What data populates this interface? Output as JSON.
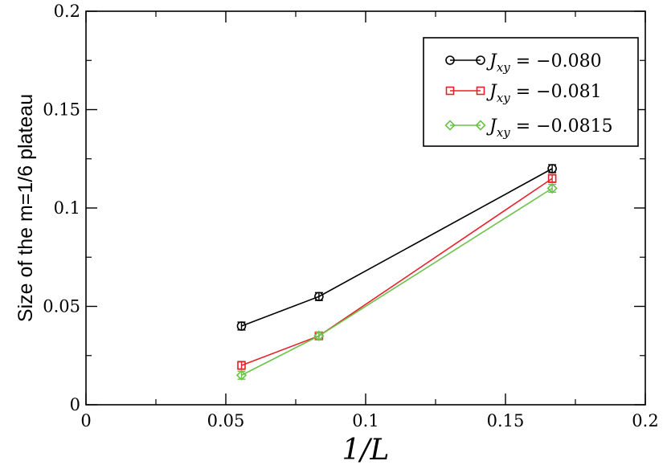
{
  "chart_data": {
    "type": "line",
    "xlabel": "1/L",
    "ylabel": "Size of the m=1/6 plateau",
    "xlim": [
      0,
      0.2
    ],
    "ylim": [
      0,
      0.2
    ],
    "x_ticks": [
      "0",
      "0.05",
      "0.1",
      "0.15",
      "0.2"
    ],
    "y_ticks": [
      "0",
      "0.05",
      "0.1",
      "0.15",
      "0.2"
    ],
    "legend_position": "top-right",
    "grid": false,
    "series": [
      {
        "name": "J_xy = −0.080",
        "color": "#000000",
        "marker": "circle",
        "x": [
          0.0556,
          0.0833,
          0.1667
        ],
        "y": [
          0.04,
          0.055,
          0.12
        ],
        "yerr": [
          0.002,
          0.002,
          0.002
        ]
      },
      {
        "name": "J_xy = −0.081",
        "color": "#e8202a",
        "marker": "square",
        "x": [
          0.0556,
          0.0833,
          0.1667
        ],
        "y": [
          0.02,
          0.035,
          0.115
        ],
        "yerr": [
          0.002,
          0.002,
          0.002
        ]
      },
      {
        "name": "J_xy = −0.0815",
        "color": "#6cc24a",
        "marker": "diamond",
        "x": [
          0.0556,
          0.0833,
          0.1667
        ],
        "y": [
          0.015,
          0.035,
          0.11
        ],
        "yerr": [
          0.002,
          0.002,
          0.002
        ]
      }
    ]
  },
  "legend_labels": [
    "−0.080",
    "−0.081",
    "−0.0815"
  ]
}
